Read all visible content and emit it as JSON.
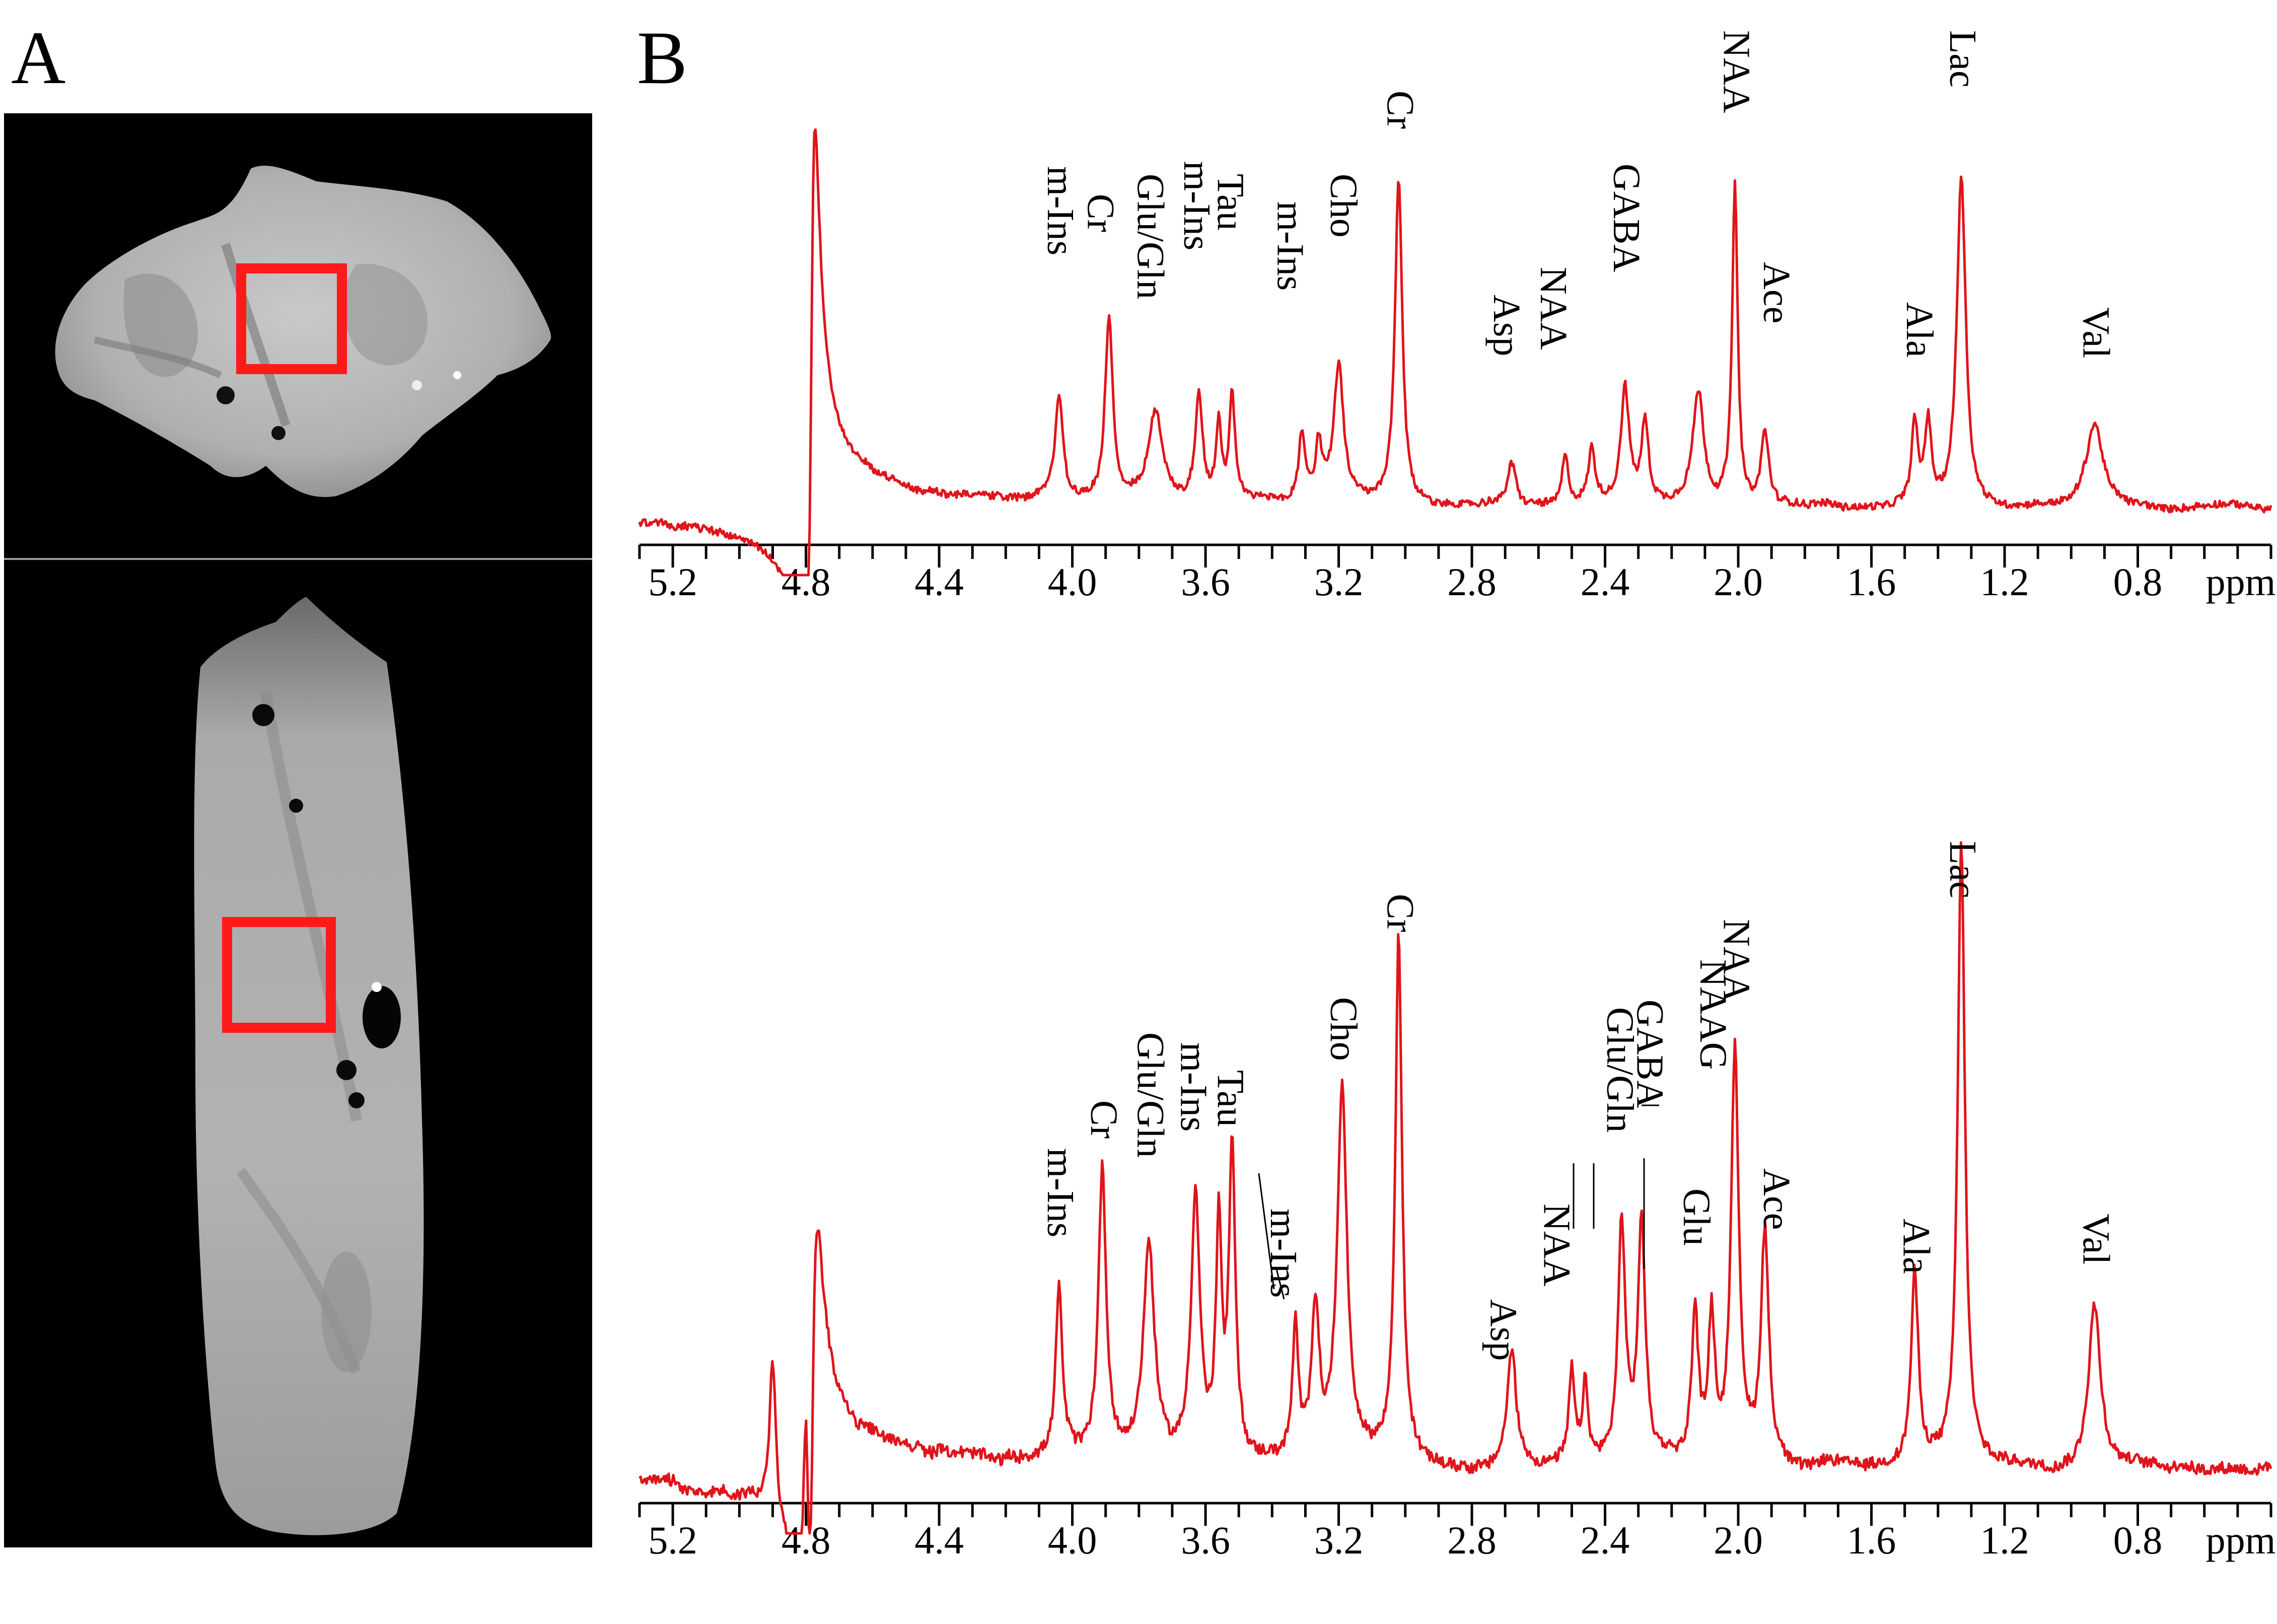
{
  "panels": {
    "a_label": "A",
    "b_label": "B"
  },
  "colors": {
    "trace": "#e0141b",
    "roi": "#ff1a1a",
    "axis": "#000000",
    "mri_bg": "#000000",
    "tissue": "#b7b7b7"
  },
  "chart_data": [
    {
      "type": "line",
      "title": "",
      "xlabel": "ppm",
      "ylabel": "",
      "xlim": [
        5.3,
        0.4
      ],
      "axis_reversed": true,
      "grid": false,
      "xticks": [
        5.2,
        4.8,
        4.4,
        4.0,
        3.6,
        3.2,
        2.8,
        2.4,
        2.0,
        1.6,
        1.2,
        0.8
      ],
      "xtick_labels": [
        "5.2",
        "4.8",
        "4.4",
        "4.0",
        "3.6",
        "3.2",
        "2.8",
        "2.4",
        "2.0",
        "1.6",
        "1.2",
        "0.8"
      ],
      "ylim": [
        -0.3,
        1.0
      ],
      "baseline": 0.0,
      "peaks": [
        {
          "ppm": 4.78,
          "h": 0.7,
          "w": 0.012
        },
        {
          "ppm": 4.04,
          "h": 0.25,
          "w": 0.014
        },
        {
          "ppm": 3.89,
          "h": 0.45,
          "w": 0.014
        },
        {
          "ppm": 3.75,
          "h": 0.22,
          "w": 0.025
        },
        {
          "ppm": 3.62,
          "h": 0.27,
          "w": 0.013
        },
        {
          "ppm": 3.56,
          "h": 0.18,
          "w": 0.01
        },
        {
          "ppm": 3.52,
          "h": 0.26,
          "w": 0.01
        },
        {
          "ppm": 3.31,
          "h": 0.17,
          "w": 0.012
        },
        {
          "ppm": 3.26,
          "h": 0.14,
          "w": 0.012
        },
        {
          "ppm": 3.2,
          "h": 0.33,
          "w": 0.018
        },
        {
          "ppm": 3.02,
          "h": 0.8,
          "w": 0.013
        },
        {
          "ppm": 2.68,
          "h": 0.1,
          "w": 0.015
        },
        {
          "ppm": 2.52,
          "h": 0.12,
          "w": 0.012
        },
        {
          "ppm": 2.44,
          "h": 0.13,
          "w": 0.012
        },
        {
          "ppm": 2.34,
          "h": 0.28,
          "w": 0.015
        },
        {
          "ppm": 2.28,
          "h": 0.2,
          "w": 0.013
        },
        {
          "ppm": 2.12,
          "h": 0.28,
          "w": 0.02
        },
        {
          "ppm": 2.01,
          "h": 0.78,
          "w": 0.01
        },
        {
          "ppm": 1.92,
          "h": 0.18,
          "w": 0.014
        },
        {
          "ppm": 1.47,
          "h": 0.2,
          "w": 0.012
        },
        {
          "ppm": 1.43,
          "h": 0.2,
          "w": 0.012
        },
        {
          "ppm": 1.33,
          "h": 0.82,
          "w": 0.016
        },
        {
          "ppm": 0.93,
          "h": 0.2,
          "w": 0.03
        }
      ],
      "annotations": [
        {
          "text": "m-Ins",
          "ppm": 4.04
        },
        {
          "text": "Cr",
          "ppm": 3.92
        },
        {
          "text": "Glu/Gln",
          "ppm": 3.77
        },
        {
          "text": "m-Ins",
          "ppm": 3.63
        },
        {
          "text": "Tau",
          "ppm": 3.53
        },
        {
          "text": "m-Ins",
          "ppm": 3.35
        },
        {
          "text": "Cho",
          "ppm": 3.19
        },
        {
          "text": "Cr",
          "ppm": 3.02
        },
        {
          "text": "Asp",
          "ppm": 2.7
        },
        {
          "text": "NAA",
          "ppm": 2.56
        },
        {
          "text": "GABA",
          "ppm": 2.34
        },
        {
          "text": "NAA",
          "ppm": 2.01
        },
        {
          "text": "Ace",
          "ppm": 1.89
        },
        {
          "text": "Ala",
          "ppm": 1.46
        },
        {
          "text": "Lac",
          "ppm": 1.33
        },
        {
          "text": "Val",
          "ppm": 0.93
        }
      ]
    },
    {
      "type": "line",
      "title": "",
      "xlabel": "ppm",
      "ylabel": "",
      "xlim": [
        5.3,
        0.4
      ],
      "axis_reversed": true,
      "grid": false,
      "xticks": [
        5.2,
        4.8,
        4.4,
        4.0,
        3.6,
        3.2,
        2.8,
        2.4,
        2.0,
        1.6,
        1.2,
        0.8
      ],
      "xtick_labels": [
        "5.2",
        "4.8",
        "4.4",
        "4.0",
        "3.6",
        "3.2",
        "2.8",
        "2.4",
        "2.0",
        "1.6",
        "1.2",
        "0.8"
      ],
      "ylim": [
        -0.1,
        1.0
      ],
      "baseline": 0.0,
      "peaks": [
        {
          "ppm": 4.9,
          "h": 0.25,
          "w": 0.012
        },
        {
          "ppm": 4.8,
          "h": 0.4,
          "w": 0.01
        },
        {
          "ppm": 4.04,
          "h": 0.26,
          "w": 0.012
        },
        {
          "ppm": 3.91,
          "h": 0.45,
          "w": 0.014
        },
        {
          "ppm": 3.77,
          "h": 0.33,
          "w": 0.02
        },
        {
          "ppm": 3.63,
          "h": 0.41,
          "w": 0.016
        },
        {
          "ppm": 3.56,
          "h": 0.36,
          "w": 0.01
        },
        {
          "ppm": 3.52,
          "h": 0.48,
          "w": 0.012
        },
        {
          "ppm": 3.33,
          "h": 0.2,
          "w": 0.01
        },
        {
          "ppm": 3.27,
          "h": 0.24,
          "w": 0.014
        },
        {
          "ppm": 3.19,
          "h": 0.58,
          "w": 0.018
        },
        {
          "ppm": 3.02,
          "h": 0.82,
          "w": 0.012
        },
        {
          "ppm": 2.68,
          "h": 0.18,
          "w": 0.016
        },
        {
          "ppm": 2.5,
          "h": 0.14,
          "w": 0.01
        },
        {
          "ppm": 2.46,
          "h": 0.12,
          "w": 0.01
        },
        {
          "ppm": 2.35,
          "h": 0.37,
          "w": 0.013
        },
        {
          "ppm": 2.29,
          "h": 0.37,
          "w": 0.013
        },
        {
          "ppm": 2.13,
          "h": 0.23,
          "w": 0.012
        },
        {
          "ppm": 2.08,
          "h": 0.22,
          "w": 0.012
        },
        {
          "ppm": 2.01,
          "h": 0.65,
          "w": 0.014
        },
        {
          "ppm": 1.92,
          "h": 0.36,
          "w": 0.014
        },
        {
          "ppm": 1.47,
          "h": 0.3,
          "w": 0.013
        },
        {
          "ppm": 1.33,
          "h": 0.98,
          "w": 0.013
        },
        {
          "ppm": 0.93,
          "h": 0.26,
          "w": 0.022
        }
      ],
      "annotations": [
        {
          "text": "m-Ins",
          "ppm": 4.04
        },
        {
          "text": "Cr",
          "ppm": 3.91
        },
        {
          "text": "Glu/Gln",
          "ppm": 3.77
        },
        {
          "text": "m-Ins",
          "ppm": 3.64
        },
        {
          "text": "Tau",
          "ppm": 3.53
        },
        {
          "text": "m-Ins",
          "ppm": 3.37
        },
        {
          "text": "Cho",
          "ppm": 3.19
        },
        {
          "text": "Cr",
          "ppm": 3.02
        },
        {
          "text": "Asp",
          "ppm": 2.71
        },
        {
          "text": "NAA",
          "ppm": 2.55
        },
        {
          "text": "Glu/Gln",
          "ppm": 2.36
        },
        {
          "text": "GABA",
          "ppm": 2.27
        },
        {
          "text": "Glu",
          "ppm": 2.13
        },
        {
          "text": "NAAG",
          "ppm": 2.08
        },
        {
          "text": "NAA",
          "ppm": 2.01
        },
        {
          "text": "Ace",
          "ppm": 1.89
        },
        {
          "text": "Ala",
          "ppm": 1.47
        },
        {
          "text": "Lac",
          "ppm": 1.33
        },
        {
          "text": "Val",
          "ppm": 0.93
        }
      ]
    }
  ]
}
